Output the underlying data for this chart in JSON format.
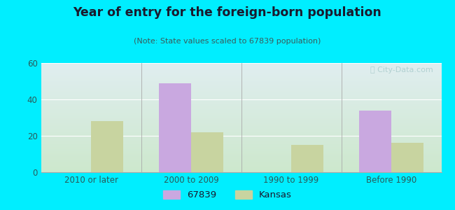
{
  "title": "Year of entry for the foreign-born population",
  "subtitle": "(Note: State values scaled to 67839 population)",
  "categories": [
    "2010 or later",
    "2000 to 2009",
    "1990 to 1999",
    "Before 1990"
  ],
  "values_67839": [
    0,
    49,
    0,
    34
  ],
  "values_kansas": [
    28,
    22,
    15,
    16
  ],
  "color_67839": "#c9a8e0",
  "color_kansas": "#c8d4a0",
  "background_outer": "#00eeff",
  "background_inner_top": "#e0eef0",
  "background_inner_bottom": "#cde8cd",
  "title_color": "#1a1a2e",
  "subtitle_color": "#3a5a5a",
  "tick_color": "#2a5a5a",
  "ylim": [
    0,
    60
  ],
  "yticks": [
    0,
    20,
    40,
    60
  ],
  "bar_width": 0.32,
  "legend_label_67839": "67839",
  "legend_label_kansas": "Kansas",
  "watermark": "ⓘ City-Data.com",
  "watermark_color": "#aacccc"
}
